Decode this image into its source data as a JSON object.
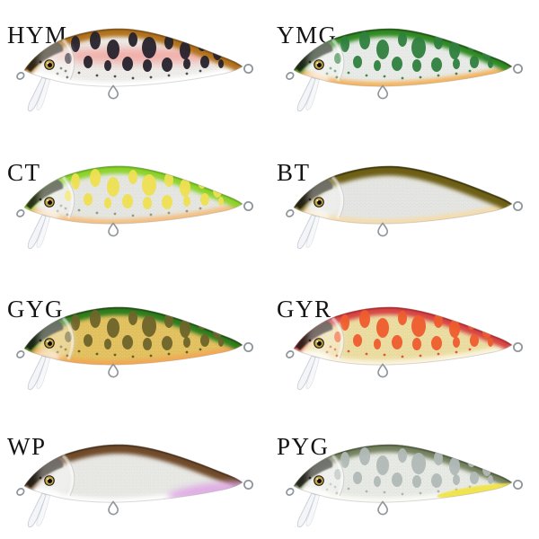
{
  "background": "#ffffff",
  "shared": {
    "label_color": "#141414",
    "eye_ring": "#171410",
    "eye_iris": "#c7a544",
    "eye_pupil": "#0a0a0a",
    "wire": "#8e969c",
    "lip_fill": "#f3f5f8",
    "lip_edge": "#c6cbd4",
    "head_patch": "#1d1c12"
  },
  "lures": [
    {
      "code": "HYM",
      "back": "#b2721e",
      "back_edge": "#6e4507",
      "back_width": 18,
      "body": "#f2f1ed",
      "scale": "#c7c6c2",
      "belly": "#ffffff",
      "band": "#f2a29c",
      "spots": "#26222c",
      "dots": "#3c3a42",
      "tail_patch": null,
      "tail_patch_soft": false
    },
    {
      "code": "YMG",
      "back": "#2f8a20",
      "back_edge": "#153f0b",
      "back_width": 18,
      "body": "#edefec",
      "scale": "#c1c6c0",
      "belly": "#f5b45f",
      "band": null,
      "spots": "#2f7f3e",
      "dots": "#2f7f3e",
      "tail_patch": null,
      "tail_patch_soft": false
    },
    {
      "code": "CT",
      "back": "#8cd32a",
      "back_edge": "#5ca514",
      "back_width": 17,
      "body": "#e9eae5",
      "scale": "#c5c7c0",
      "belly": "#f5bf80",
      "band": null,
      "spots": "#efdf52",
      "dots": "#8f9079",
      "tail_patch": null,
      "tail_patch_soft": false
    },
    {
      "code": "BT",
      "back": "#6e5f13",
      "back_edge": "#2c2806",
      "back_width": 21,
      "body": "#e8e9e6",
      "scale": "#c4c7c2",
      "belly": "#f5dcab",
      "band": null,
      "spots": null,
      "dots": null,
      "tail_patch": null,
      "tail_patch_soft": false
    },
    {
      "code": "GYG",
      "back": "#2f7d1e",
      "back_edge": "#133e0a",
      "back_width": 18,
      "body": "#e8c766",
      "scale": "#bb9a41",
      "belly": "#f2a854",
      "band": null,
      "spots": "#6e642a",
      "dots": "#5a531f",
      "tail_patch": null,
      "tail_patch_soft": false
    },
    {
      "code": "GYR",
      "back": "#d84545",
      "back_edge": "#a02025",
      "back_width": 17,
      "body": "#efe2a8",
      "scale": "#ccb671",
      "belly": "#fbf4df",
      "band": null,
      "spots": "#ee5c2d",
      "dots": "#df4a2e",
      "tail_patch": null,
      "tail_patch_soft": false
    },
    {
      "code": "WP",
      "back": "#6f4b29",
      "back_edge": "#402613",
      "back_width": 20,
      "body": "#ebebe8",
      "scale": "#c9ccc8",
      "belly": "#fdfdfc",
      "band": null,
      "spots": null,
      "dots": null,
      "tail_patch": "#dda6e2",
      "tail_patch_soft": true
    },
    {
      "code": "PYG",
      "back": "#75815e",
      "back_edge": "#3e4b2f",
      "back_width": 17,
      "body": "#eceee9",
      "scale": "#c3c8bf",
      "belly": "#fbfbf6",
      "band": null,
      "spots": "#b1b9b7",
      "dots": "#a7afad",
      "tail_patch": "#f1e23c",
      "tail_patch_soft": false
    }
  ]
}
